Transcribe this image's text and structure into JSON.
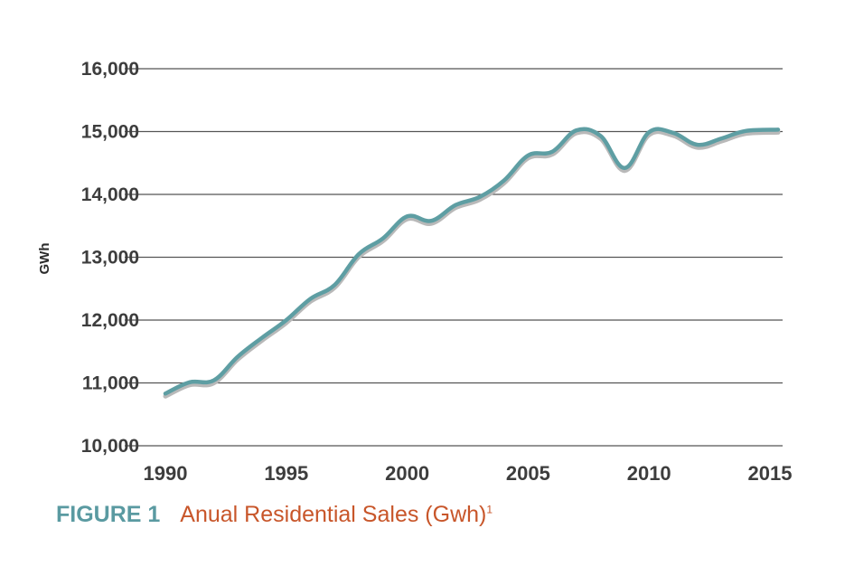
{
  "chart_data": {
    "type": "line",
    "ylabel": "GWh",
    "ylim": [
      10000,
      16000
    ],
    "xlim": [
      1990,
      2016
    ],
    "yticks": [
      {
        "value": 10000,
        "label": "10,000"
      },
      {
        "value": 11000,
        "label": "11,000"
      },
      {
        "value": 12000,
        "label": "12,000"
      },
      {
        "value": 13000,
        "label": "13,000"
      },
      {
        "value": 14000,
        "label": "14,000"
      },
      {
        "value": 15000,
        "label": "15,000"
      },
      {
        "value": 16000,
        "label": "16,000"
      }
    ],
    "xticks": [
      {
        "value": 1990,
        "label": "1990"
      },
      {
        "value": 1995,
        "label": "1995"
      },
      {
        "value": 2000,
        "label": "2000"
      },
      {
        "value": 2005,
        "label": "2005"
      },
      {
        "value": 2010,
        "label": "2010"
      },
      {
        "value": 2015,
        "label": "2015"
      }
    ],
    "grid": true,
    "series": [
      {
        "color": "#5e9ea3",
        "shadow_color": "#b9b9b9",
        "points": [
          [
            1990,
            10830
          ],
          [
            1991,
            11010
          ],
          [
            1992,
            11040
          ],
          [
            1993,
            11420
          ],
          [
            1994,
            11720
          ],
          [
            1995,
            12000
          ],
          [
            1996,
            12340
          ],
          [
            1997,
            12560
          ],
          [
            1998,
            13050
          ],
          [
            1999,
            13300
          ],
          [
            2000,
            13650
          ],
          [
            2001,
            13580
          ],
          [
            2002,
            13830
          ],
          [
            2003,
            13960
          ],
          [
            2004,
            14220
          ],
          [
            2005,
            14620
          ],
          [
            2006,
            14680
          ],
          [
            2007,
            15020
          ],
          [
            2008,
            14930
          ],
          [
            2009,
            14420
          ],
          [
            2010,
            14990
          ],
          [
            2011,
            14980
          ],
          [
            2012,
            14790
          ],
          [
            2013,
            14890
          ],
          [
            2014,
            15010
          ],
          [
            2015,
            15030
          ]
        ]
      }
    ]
  },
  "caption": {
    "figure_label": "FIGURE 1",
    "title": "Anual Residential Sales (Gwh)",
    "footnote_marker": "1"
  }
}
